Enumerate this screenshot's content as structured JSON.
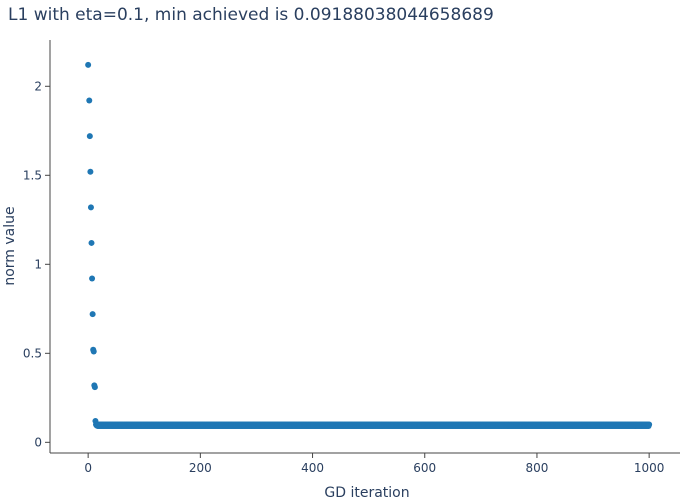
{
  "chart_data": {
    "type": "scatter",
    "title": "L1 with eta=0.1, min achieved is 0.09188038044658689",
    "xlabel": "GD iteration",
    "ylabel": "norm value",
    "xlim": [
      -68,
      1055
    ],
    "ylim": [
      -0.06,
      2.26
    ],
    "xticks": [
      0,
      200,
      400,
      600,
      800,
      1000
    ],
    "yticks": [
      0,
      0.5,
      1,
      1.5,
      2
    ],
    "ytick_labels": [
      "0",
      "0.5",
      "1",
      "1.5",
      "2"
    ],
    "marker_color": "#1f77b4",
    "grid": false,
    "series": [
      {
        "x": [
          0,
          2,
          3,
          4,
          5,
          6,
          7,
          8,
          9,
          10,
          11,
          12,
          13,
          14,
          15
        ],
        "y": [
          2.12,
          1.92,
          1.72,
          1.52,
          1.32,
          1.12,
          0.92,
          0.72,
          0.52,
          0.51,
          0.32,
          0.31,
          0.12,
          0.1,
          0.095
        ],
        "plateau": {
          "x_start": 16,
          "x_end": 1000,
          "y": 0.1,
          "y_min": 0.09188038044658689
        }
      }
    ]
  }
}
